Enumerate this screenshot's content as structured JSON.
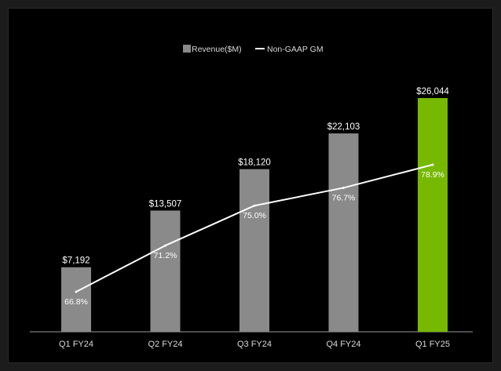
{
  "chart_data": {
    "type": "bar",
    "categories": [
      "Q1 FY24",
      "Q2 FY24",
      "Q3 FY24",
      "Q4 FY24",
      "Q1 FY25"
    ],
    "series": [
      {
        "name": "Revenue($M)",
        "type": "bar",
        "values": [
          7192,
          13507,
          18120,
          22103,
          26044
        ],
        "labels": [
          "$7,192",
          "$13,507",
          "$18,120",
          "$22,103",
          "$26,044"
        ]
      },
      {
        "name": "Non-GAAP GM",
        "type": "line",
        "values": [
          66.8,
          71.2,
          75.0,
          76.7,
          78.9
        ],
        "labels": [
          "66.8%",
          "71.2%",
          "75.0%",
          "76.7%",
          "78.9%"
        ]
      }
    ],
    "legend_position": "top-center",
    "colors": {
      "bar": "#8a8a8a",
      "highlight_bar": "#76b900",
      "line": "#ffffff",
      "background": "#000000",
      "axis": "#9a9a9a"
    },
    "highlight_index": 4,
    "grid": false
  }
}
